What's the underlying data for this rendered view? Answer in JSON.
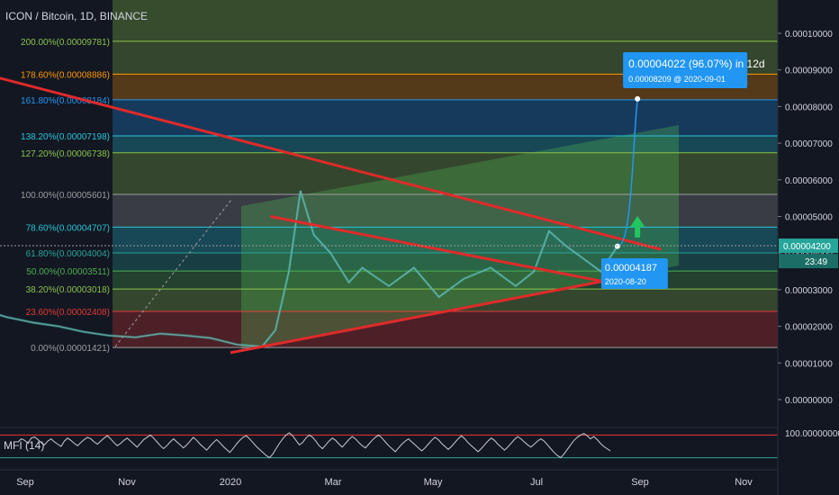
{
  "header": {
    "symbol_title": "ICON / Bitcoin, 1D, BINANCE"
  },
  "colors": {
    "background": "#131722",
    "price_up": "#26a69a",
    "price_line": "#c9ccd3",
    "trendline": "#e02a2a",
    "forecast": "#2196f3",
    "arrow": "#22c55e",
    "mfi_line": "#c9ccd3",
    "mfi_level": "#e53935"
  },
  "price_axis": {
    "labels": [
      "0.00010000",
      "0.00009000",
      "0.00008000",
      "0.00007000",
      "0.00006000",
      "0.00005000",
      "0.00004000",
      "0.00003000",
      "0.00002000",
      "0.00001000",
      "0.00000000"
    ],
    "current_price": "0.00004200",
    "countdown": "23:49"
  },
  "time_axis": {
    "labels": [
      "Sep",
      "Nov",
      "2020",
      "Mar",
      "May",
      "Jul",
      "Sep",
      "Nov"
    ]
  },
  "fib_levels": [
    {
      "ratio": "200.00%",
      "value": "0.00009781",
      "price": 9.781e-05,
      "color": "#8bc34a"
    },
    {
      "ratio": "178.60%",
      "value": "0.00008886",
      "price": 8.886e-05,
      "color": "#ff9800"
    },
    {
      "ratio": "161.80%",
      "value": "0.00008184",
      "price": 8.184e-05,
      "color": "#2196f3"
    },
    {
      "ratio": "138.20%",
      "value": "0.00007198",
      "price": 7.198e-05,
      "color": "#26c6da"
    },
    {
      "ratio": "127.20%",
      "value": "0.00006738",
      "price": 6.738e-05,
      "color": "#8bc34a"
    },
    {
      "ratio": "100.00%",
      "value": "0.00005601",
      "price": 5.601e-05,
      "color": "#9e9e9e"
    },
    {
      "ratio": "78.60%",
      "value": "0.00004707",
      "price": 4.707e-05,
      "color": "#26c6da"
    },
    {
      "ratio": "61.80%",
      "value": "0.00004004",
      "price": 4.004e-05,
      "color": "#26a69a"
    },
    {
      "ratio": "50.00%",
      "value": "0.00003511",
      "price": 3.511e-05,
      "color": "#4caf50"
    },
    {
      "ratio": "38.20%",
      "value": "0.00003018",
      "price": 3.018e-05,
      "color": "#8bc34a"
    },
    {
      "ratio": "23.60%",
      "value": "0.00002408",
      "price": 2.408e-05,
      "color": "#e53935"
    },
    {
      "ratio": "0.00%",
      "value": "0.00001421",
      "price": 1.421e-05,
      "color": "#9e9e9e"
    }
  ],
  "annotations": {
    "target_line1": "0.00004022 (96.07%) in 12d",
    "target_line2": "0.00008209 @ 2020-09-01",
    "current_line1": "0.00004187",
    "current_line2": "2020-08-20"
  },
  "indicator": {
    "label": "MFI (14)",
    "upper_value": "100.00000000",
    "values": [
      62,
      70,
      66,
      58,
      72,
      75,
      68,
      60,
      54,
      64,
      70,
      62,
      56,
      50,
      64,
      72,
      66,
      58,
      52,
      60,
      68,
      74,
      70,
      62,
      56,
      64,
      72,
      78,
      70,
      60,
      52,
      58,
      66,
      72,
      64,
      56,
      48,
      58,
      68,
      74,
      80,
      72,
      62,
      52,
      44,
      52,
      62,
      70,
      62,
      54,
      46,
      54,
      64,
      74,
      66,
      56,
      48,
      40,
      50,
      60,
      68,
      60,
      50,
      42,
      34,
      44,
      56,
      66,
      74,
      78,
      70,
      60,
      50,
      42,
      34,
      26,
      20,
      30,
      44,
      58,
      70,
      80,
      86,
      78,
      66,
      54,
      60,
      72,
      80,
      74,
      64,
      52,
      44,
      54,
      64,
      72,
      66,
      56,
      48,
      58,
      68,
      76,
      70,
      60,
      52,
      46,
      56,
      66,
      74,
      80,
      72,
      62,
      52,
      44,
      36,
      46,
      56,
      64,
      70,
      62,
      54,
      46,
      38,
      46,
      56,
      66,
      74,
      68,
      58,
      50,
      42,
      50,
      60,
      70,
      78,
      70,
      60,
      52,
      44,
      36,
      44,
      54,
      64,
      72,
      66,
      56,
      48,
      40,
      48,
      58,
      68,
      76,
      70,
      62,
      54,
      48,
      56,
      64,
      70,
      64,
      54,
      44,
      34,
      26,
      20,
      30,
      42,
      54,
      66,
      74,
      80,
      84,
      78,
      70,
      76,
      68,
      58,
      50,
      44,
      38
    ]
  },
  "chart_data": {
    "type": "line",
    "title": "ICON / Bitcoin, 1D, BINANCE",
    "xlabel": "",
    "ylabel": "",
    "x": [
      "2019-08-05",
      "2019-08-20",
      "2019-09-05",
      "2019-09-20",
      "2019-10-05",
      "2019-10-20",
      "2019-11-05",
      "2019-11-20",
      "2019-12-05",
      "2019-12-20",
      "2020-01-05",
      "2020-01-20",
      "2020-01-28",
      "2020-02-05",
      "2020-02-12",
      "2020-02-20",
      "2020-03-01",
      "2020-03-12",
      "2020-03-20",
      "2020-04-05",
      "2020-04-20",
      "2020-05-05",
      "2020-05-20",
      "2020-06-05",
      "2020-06-20",
      "2020-07-01",
      "2020-07-10",
      "2020-07-20",
      "2020-08-01",
      "2020-08-10",
      "2020-08-20"
    ],
    "series": [
      {
        "values": [
          2.45e-05,
          2.25e-05,
          2.1e-05,
          2e-05,
          1.85e-05,
          1.75e-05,
          1.7e-05,
          1.8e-05,
          1.75e-05,
          1.68e-05,
          1.5e-05,
          1.45e-05,
          1.9e-05,
          3.5e-05,
          5.7e-05,
          4.5e-05,
          4e-05,
          3.2e-05,
          3.6e-05,
          3.1e-05,
          3.6e-05,
          2.8e-05,
          3.3e-05,
          3.6e-05,
          3.1e-05,
          3.5e-05,
          4.6e-05,
          4.2e-05,
          3.8e-05,
          3.5e-05,
          4.187e-05
        ]
      }
    ],
    "forecast": {
      "from_date": "2020-08-20",
      "from_price": 4.187e-05,
      "to_date": "2020-09-01",
      "to_price": 8.209e-05
    },
    "trendlines": [
      {
        "from": [
          "2019-08-01",
          8.95e-05
        ],
        "to": [
          "2020-09-15",
          4.1e-05
        ]
      },
      {
        "from": [
          "2020-01-25",
          5e-05
        ],
        "to": [
          "2020-08-20",
          3.15e-05
        ]
      },
      {
        "from": [
          "2020-01-01",
          1.28e-05
        ],
        "to": [
          "2020-08-25",
          3.35e-05
        ]
      }
    ],
    "ylim": [
      0,
      0.0001
    ],
    "grid": false
  }
}
